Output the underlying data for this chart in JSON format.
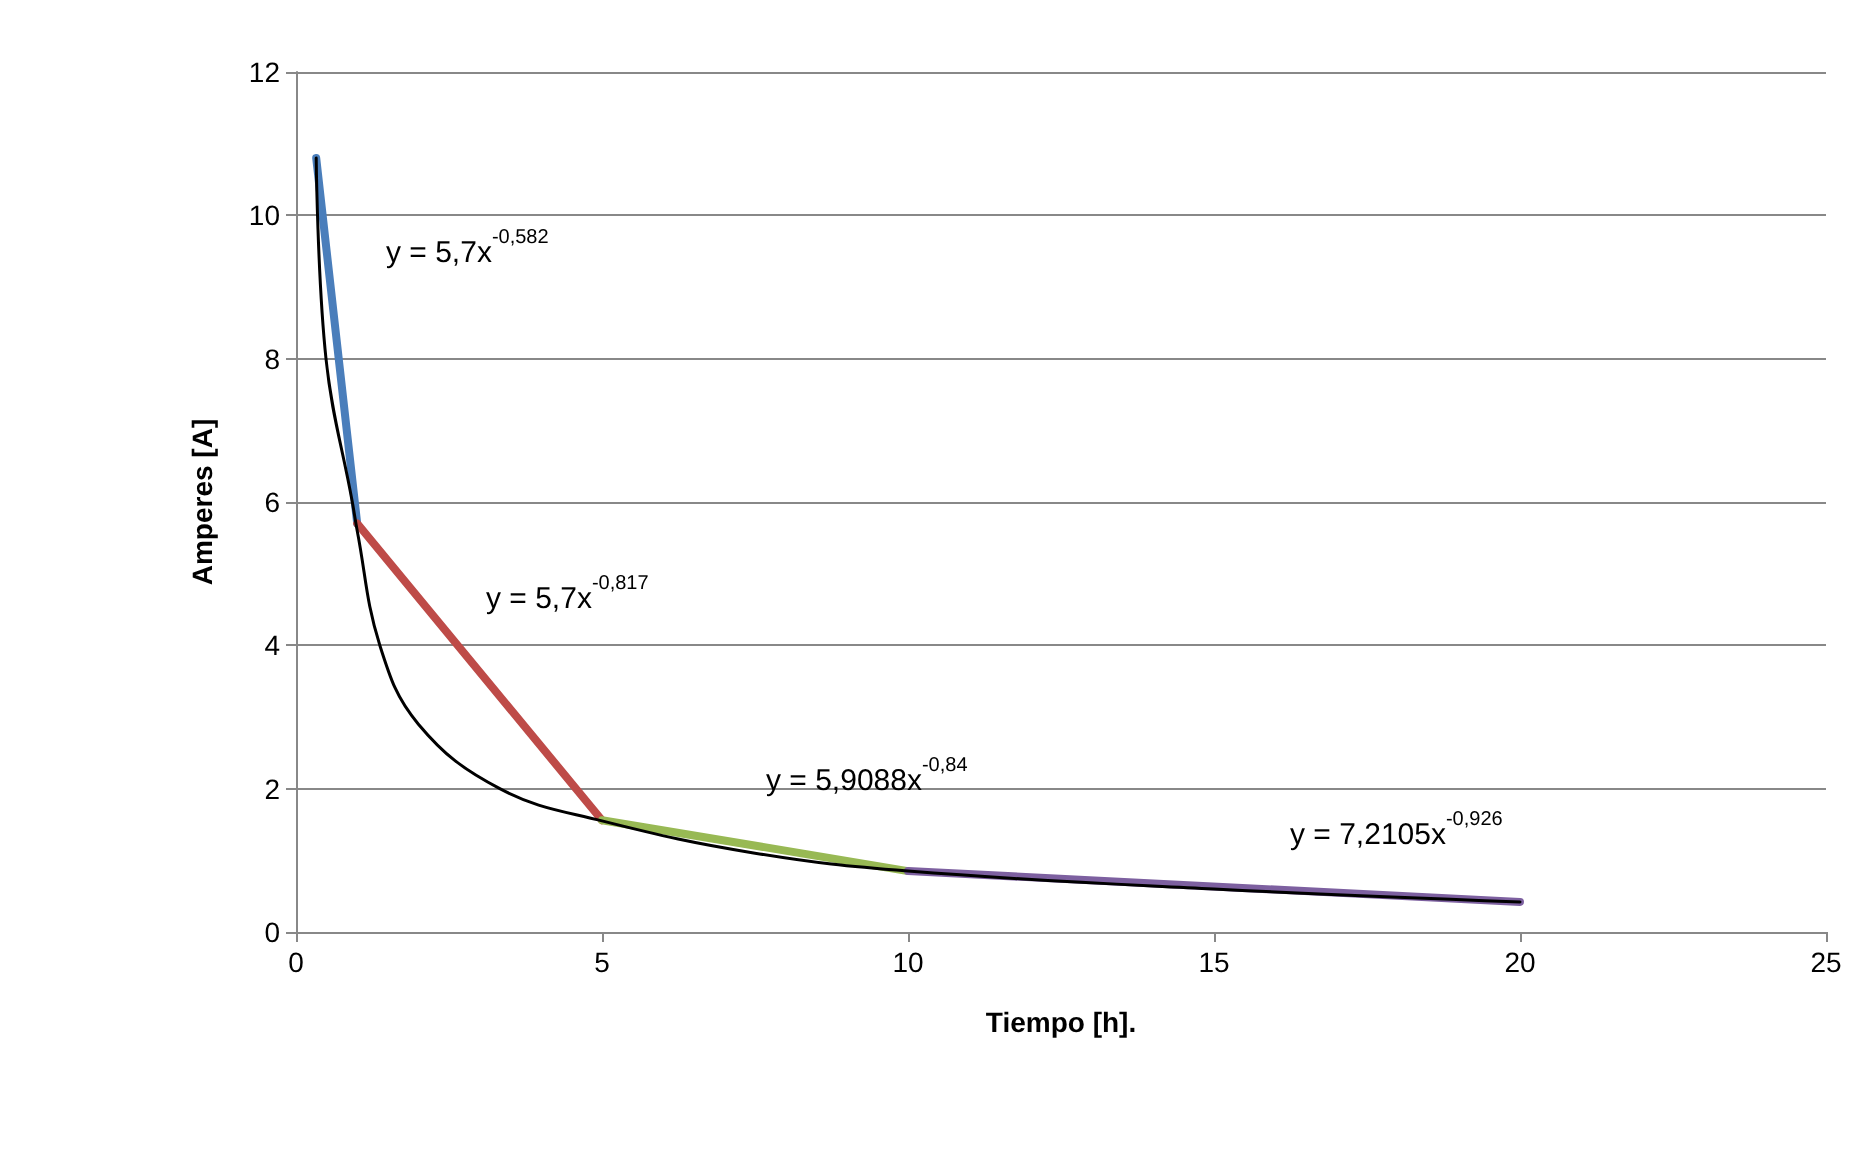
{
  "chart_data": {
    "type": "line",
    "xlabel": "Tiempo [h].",
    "ylabel": "Amperes [A]",
    "xlim": [
      0,
      25
    ],
    "xticks": [
      0,
      5,
      10,
      15,
      20,
      25
    ],
    "ylim": [
      0,
      12
    ],
    "yticks": [
      0,
      2,
      4,
      6,
      8,
      10,
      12
    ],
    "grid": "y",
    "marker": "none",
    "line_style": "solid",
    "series": [
      {
        "color": "#4a7ebb",
        "x": [
          0.33,
          1
        ],
        "values": [
          10.8,
          5.7
        ]
      },
      {
        "color": "#be4b48",
        "x": [
          1,
          5
        ],
        "values": [
          5.7,
          1.56
        ]
      },
      {
        "color": "#98b954",
        "x": [
          5,
          10
        ],
        "values": [
          1.56,
          0.85
        ]
      },
      {
        "color": "#7d60a0",
        "x": [
          10,
          20
        ],
        "values": [
          0.85,
          0.42
        ]
      },
      {
        "color": "#000000",
        "x": [
          0.33,
          0.49,
          0.92,
          1,
          1.37,
          2,
          3.33,
          5,
          7.5,
          10,
          15,
          20
        ],
        "values": [
          10.8,
          8,
          6,
          5.6,
          4,
          2.9,
          2,
          1.55,
          1.1,
          0.85,
          0.6,
          0.42
        ]
      }
    ],
    "annotations": [
      "y = 5,7x$^{-0,582}$",
      "y = 5,7x$^{-0,817}$",
      "y = 5,9088x$^{-0,84}$",
      "y = 7,2105x$^{-0,926}$"
    ]
  }
}
